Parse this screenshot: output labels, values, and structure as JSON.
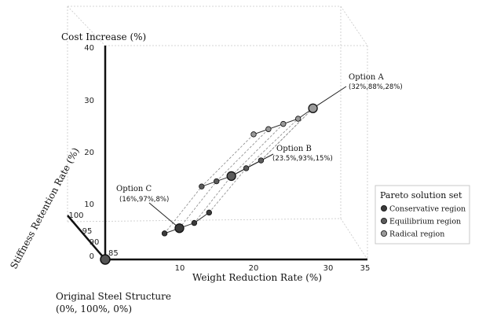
{
  "chart_data": {
    "type": "scatter",
    "title": "",
    "axes": {
      "x": {
        "label": "Weight Reduction Rate (%)",
        "ticks": [
          "10",
          "20",
          "30",
          "35"
        ]
      },
      "y": {
        "label": "Cost Increase (%)",
        "ticks": [
          "0",
          "10",
          "20",
          "30",
          "40"
        ]
      },
      "z": {
        "label": "Stiffness Retention Rate (%)",
        "ticks": [
          "85",
          "90",
          "95",
          "100"
        ]
      }
    },
    "origin": {
      "name": "Original Steel Structure",
      "coords": "(0%, 100%, 0%)"
    },
    "legend": {
      "title": "Pareto solution set",
      "position": "right",
      "entries": [
        {
          "name": "Conservative region",
          "color": "#3a3a3a"
        },
        {
          "name": "Equilibrium region",
          "color": "#5c5c5c"
        },
        {
          "name": "Radical region",
          "color": "#9a9a9a"
        }
      ]
    },
    "series": [
      {
        "name": "Conservative region",
        "x": [
          8,
          10,
          12,
          14
        ],
        "y": [
          5,
          6,
          7,
          9
        ]
      },
      {
        "name": "Equilibrium region",
        "x": [
          13,
          15,
          17,
          19,
          21
        ],
        "y": [
          14,
          15,
          16,
          17.5,
          19
        ]
      },
      {
        "name": "Radical region",
        "x": [
          20,
          22,
          24,
          26,
          28
        ],
        "y": [
          24,
          25,
          26,
          27,
          29
        ]
      }
    ],
    "options": [
      {
        "name": "Option A",
        "values": "(32%,88%,28%)",
        "x": 28,
        "y": 29
      },
      {
        "name": "Option B",
        "values": "(23.5%,93%,15%)",
        "x": 17,
        "y": 16
      },
      {
        "name": "Option C",
        "values": "(16%,97%,8%)",
        "x": 10,
        "y": 6
      }
    ]
  }
}
